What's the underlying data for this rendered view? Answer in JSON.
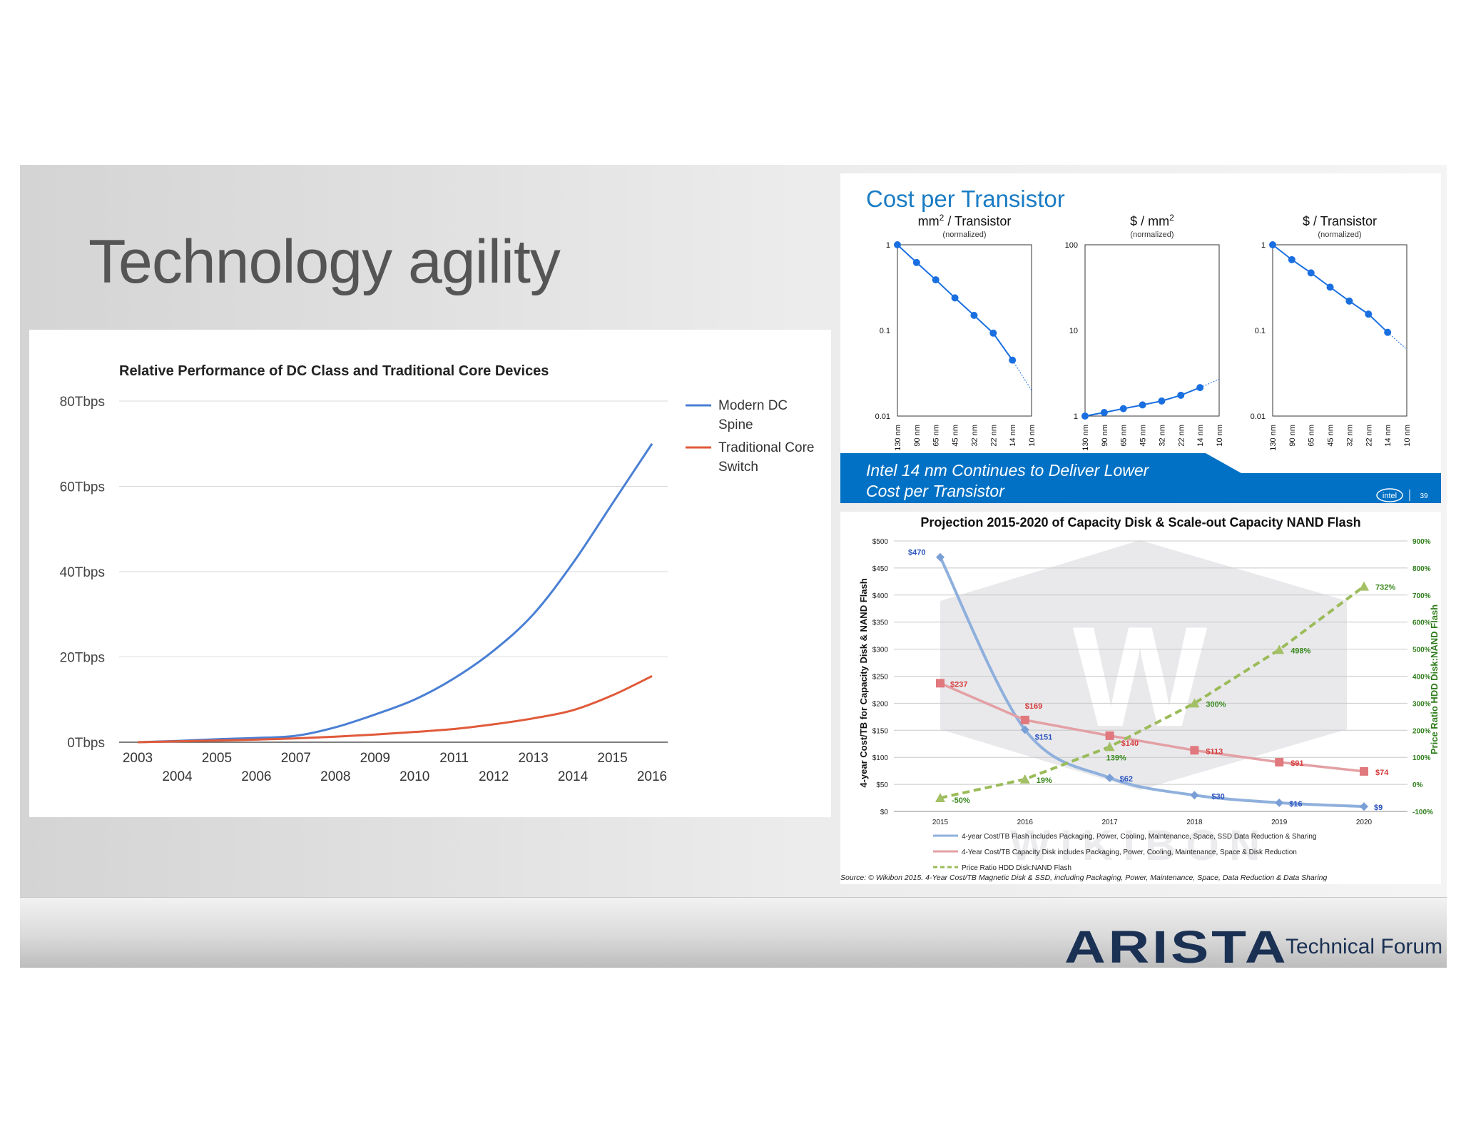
{
  "slide": {
    "title": "Technology agility",
    "brand": "ARISTA",
    "brand_sub": "Technical Forum",
    "colors": {
      "blue": "#4a7fd4",
      "red": "#e05a3a",
      "intel_blue": "#0071c5",
      "arista_navy": "#1b3154"
    }
  },
  "chart_data": [
    {
      "type": "line",
      "title": "Relative Performance of DC Class and Traditional Core Devices",
      "x": [
        2003,
        2004,
        2005,
        2006,
        2007,
        2008,
        2009,
        2010,
        2011,
        2012,
        2013,
        2014,
        2015,
        2016
      ],
      "x_ticks_top": [
        "2003",
        "2005",
        "2007",
        "2009",
        "2011",
        "2013",
        "2015"
      ],
      "x_ticks_bottom": [
        "2004",
        "2006",
        "2008",
        "2010",
        "2012",
        "2014",
        "2016"
      ],
      "y_ticks": [
        "0Tbps",
        "20Tbps",
        "40Tbps",
        "60Tbps",
        "80Tbps"
      ],
      "ylim": [
        0,
        80
      ],
      "grid": true,
      "legend": "right",
      "series": [
        {
          "name": "Modern DC Spine",
          "color": "#4a7fd4",
          "legend_lines": [
            "Modern DC",
            "Spine"
          ],
          "values": [
            0,
            0.3,
            0.7,
            1,
            1.5,
            3.5,
            6.5,
            10,
            15,
            21.5,
            30,
            42,
            56,
            70
          ]
        },
        {
          "name": "Traditional Core Switch",
          "color": "#e05a3a",
          "legend_lines": [
            "Traditional Core",
            "Switch"
          ],
          "values": [
            0,
            0.2,
            0.4,
            0.6,
            0.9,
            1.3,
            1.8,
            2.4,
            3.1,
            4.2,
            5.6,
            7.5,
            11,
            15.5
          ]
        }
      ]
    },
    {
      "type": "line",
      "title": "Cost per Transistor",
      "banner_lines": [
        "Intel 14 nm Continues to Deliver Lower",
        "Cost per Transistor"
      ],
      "logo_text": "intel",
      "page_number": "39",
      "scale": "log",
      "categories": [
        "130 nm",
        "90 nm",
        "65 nm",
        "45 nm",
        "32 nm",
        "22 nm",
        "14 nm",
        "10 nm"
      ],
      "panels": [
        {
          "title": "mm",
          "title_sup": "2",
          "title_rest": " / Transistor",
          "subtitle": "(normalized)",
          "y_ticks": [
            "1",
            "0.1",
            "0.01"
          ],
          "ylim": [
            0.01,
            1
          ],
          "values": [
            1,
            0.62,
            0.39,
            0.24,
            0.15,
            0.093,
            0.045
          ],
          "projection": 0.02
        },
        {
          "title": "$ / mm",
          "title_sup": "2",
          "title_rest": "",
          "subtitle": "(normalized)",
          "y_ticks": [
            "100",
            "10",
            "1"
          ],
          "ylim": [
            1,
            100
          ],
          "values": [
            1,
            1.1,
            1.22,
            1.35,
            1.5,
            1.75,
            2.15
          ],
          "projection": 2.7
        },
        {
          "title": "$ / Transistor",
          "title_sup": "",
          "title_rest": "",
          "subtitle": "(normalized)",
          "y_ticks": [
            "1",
            "0.1",
            "0.01"
          ],
          "ylim": [
            0.01,
            1
          ],
          "values": [
            1,
            0.67,
            0.47,
            0.32,
            0.22,
            0.155,
            0.095
          ],
          "projection": 0.06
        }
      ]
    },
    {
      "type": "line",
      "title": "Projection 2015-2020 of Capacity Disk & Scale-out Capacity NAND Flash",
      "x": [
        "2015",
        "2016",
        "2017",
        "2018",
        "2019",
        "2020"
      ],
      "ylabel": "4-year Cost/TB for Capacity Disk & NAND Flash",
      "y2label": "Price Ratio HDD Disk:NAND Flash",
      "y_ticks": [
        "$0",
        "$50",
        "$100",
        "$150",
        "$200",
        "$250",
        "$300",
        "$350",
        "$400",
        "$450",
        "$500"
      ],
      "y2_ticks": [
        "-100%",
        "0%",
        "100%",
        "200%",
        "300%",
        "400%",
        "500%",
        "600%",
        "700%",
        "800%",
        "900%"
      ],
      "ylim": [
        0,
        500
      ],
      "y2lim": [
        -100,
        900
      ],
      "watermark": "WIKIBON",
      "source": "Source: © Wikibon 2015. 4-Year Cost/TB Magnetic Disk & SSD, including Packaging, Power, Maintenance, Space, Data Reduction & Data Sharing",
      "series": [
        {
          "name": "4-year Cost/TB Flash includes Packaging, Power, Cooling, Maintenance, Space, SSD Data Reduction & Sharing",
          "color": "#8fb0dc",
          "label_color": "#2a52be",
          "marker": "diamond",
          "axis": "left",
          "values": [
            470,
            151,
            62,
            30,
            16,
            9
          ],
          "labels": [
            "$470",
            "$151",
            "$62",
            "$30",
            "$16",
            "$9"
          ]
        },
        {
          "name": "4-Year Cost/TB Capacity Disk includes Packaging, Power, Cooling, Maintenance, Space & Disk Reduction",
          "color": "#e3a0a4",
          "label_color": "#d63a3a",
          "marker": "square",
          "axis": "left",
          "values": [
            237,
            169,
            140,
            113,
            91,
            74
          ],
          "labels": [
            "$237",
            "$169",
            "$140",
            "$113",
            "$91",
            "$74"
          ]
        },
        {
          "name": "Price Ratio HDD Disk:NAND Flash",
          "color": "#9bbb59",
          "label_color": "#3a8a1e",
          "marker": "triangle",
          "axis": "right",
          "values": [
            -50,
            19,
            139,
            300,
            498,
            732
          ],
          "labels": [
            "-50%",
            "19%",
            "139%",
            "300%",
            "498%",
            "732%"
          ]
        }
      ]
    }
  ]
}
